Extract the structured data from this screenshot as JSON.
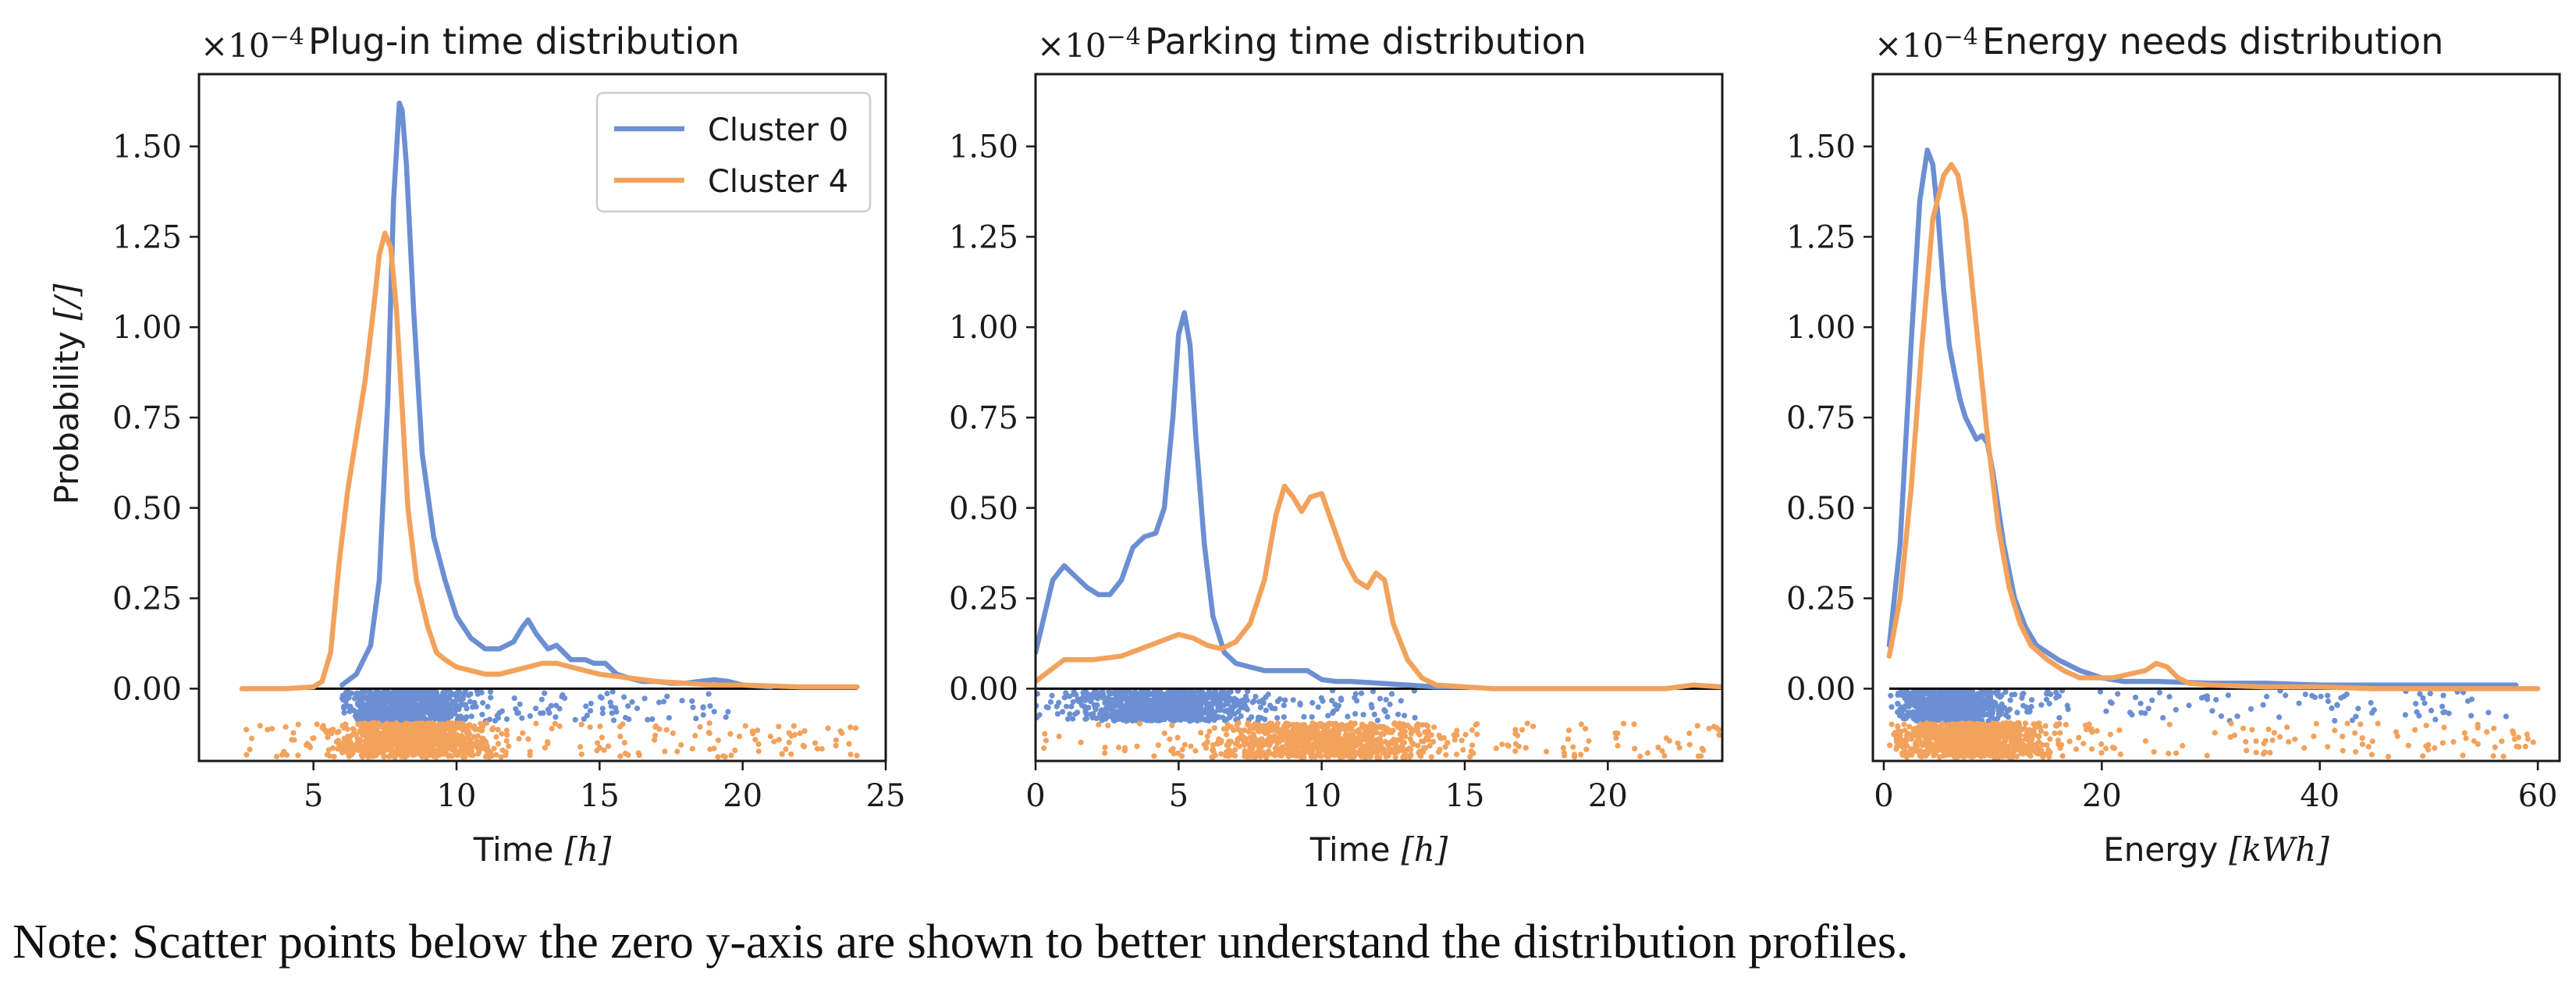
{
  "colors": {
    "cluster0": "#6b8fd2",
    "cluster4": "#f2a25c",
    "axis": "#1a1a1a",
    "zero_line": "#000000"
  },
  "legend": {
    "position": "top-right",
    "entries": [
      "Cluster 0",
      "Cluster 4"
    ]
  },
  "note": "Note: Scatter points below the zero y-axis are shown to better understand the distribution profiles.",
  "chart_data": [
    {
      "type": "line",
      "title": "Plug-in time distribution",
      "scale_label": "×10",
      "scale_exp": "−4",
      "xlabel": "Time",
      "xunit": "[h]",
      "ylabel": "Probability",
      "yunit": "[/]",
      "xlim": [
        1.0,
        25.0
      ],
      "ylim": [
        -0.2,
        1.7
      ],
      "xticks": [
        5,
        10,
        15,
        20,
        25
      ],
      "xtick_labels": [
        "5",
        "10",
        "15",
        "20",
        "25"
      ],
      "yticks": [
        0.0,
        0.25,
        0.5,
        0.75,
        1.0,
        1.25,
        1.5
      ],
      "ytick_labels": [
        "0.00",
        "0.25",
        "0.50",
        "0.75",
        "1.00",
        "1.25",
        "1.50"
      ],
      "show_legend": true,
      "baseline": {
        "x": [
          2.5,
          24.0
        ],
        "y": 0
      },
      "scatter": [
        {
          "name": "Cluster 0",
          "x_range": [
            6.0,
            19.5
          ],
          "peak": 8.2,
          "spread": 2.8,
          "y_range": [
            -0.09,
            -0.005
          ],
          "count": 900
        },
        {
          "name": "Cluster 4",
          "x_range": [
            2.5,
            24.0
          ],
          "peak": 8.5,
          "spread": 3.5,
          "y_range": [
            -0.19,
            -0.095
          ],
          "count": 1000
        }
      ],
      "series": [
        {
          "name": "Cluster 0",
          "x": [
            6.0,
            6.5,
            7.0,
            7.3,
            7.6,
            7.8,
            8.0,
            8.1,
            8.25,
            8.5,
            8.8,
            9.2,
            9.6,
            10.0,
            10.5,
            11.0,
            11.5,
            12.0,
            12.3,
            12.5,
            12.8,
            13.2,
            13.5,
            14.0,
            14.5,
            14.8,
            15.2,
            15.6,
            16.0,
            16.5,
            17.0,
            17.5,
            18.0,
            18.5,
            19.0,
            19.5,
            20.0,
            21.0
          ],
          "y": [
            0.01,
            0.04,
            0.12,
            0.3,
            0.8,
            1.35,
            1.62,
            1.6,
            1.45,
            1.05,
            0.65,
            0.42,
            0.3,
            0.2,
            0.14,
            0.11,
            0.11,
            0.13,
            0.17,
            0.19,
            0.15,
            0.11,
            0.12,
            0.08,
            0.08,
            0.07,
            0.07,
            0.04,
            0.03,
            0.02,
            0.02,
            0.015,
            0.015,
            0.02,
            0.025,
            0.02,
            0.01,
            0.005
          ]
        },
        {
          "name": "Cluster 4",
          "x": [
            2.5,
            4.0,
            5.0,
            5.3,
            5.6,
            5.9,
            6.2,
            6.5,
            6.8,
            7.1,
            7.3,
            7.5,
            7.7,
            7.9,
            8.1,
            8.3,
            8.6,
            9.0,
            9.3,
            9.6,
            10.0,
            10.5,
            11.0,
            11.5,
            12.0,
            12.5,
            13.0,
            13.5,
            14.0,
            15.0,
            16.0,
            17.0,
            18.0,
            19.0,
            20.0,
            22.0,
            24.0
          ],
          "y": [
            0.0,
            0.0,
            0.005,
            0.02,
            0.1,
            0.35,
            0.55,
            0.7,
            0.85,
            1.05,
            1.2,
            1.26,
            1.22,
            1.05,
            0.78,
            0.5,
            0.3,
            0.17,
            0.1,
            0.08,
            0.06,
            0.05,
            0.04,
            0.04,
            0.05,
            0.06,
            0.07,
            0.07,
            0.06,
            0.04,
            0.03,
            0.02,
            0.015,
            0.01,
            0.01,
            0.005,
            0.005
          ]
        }
      ]
    },
    {
      "type": "line",
      "title": "Parking time distribution",
      "scale_label": "×10",
      "scale_exp": "−4",
      "xlabel": "Time",
      "xunit": "[h]",
      "ylabel": "",
      "yunit": "",
      "xlim": [
        0.0,
        24.0
      ],
      "ylim": [
        -0.2,
        1.7
      ],
      "xticks": [
        0,
        5,
        10,
        15,
        20
      ],
      "xtick_labels": [
        "0",
        "5",
        "10",
        "15",
        "20"
      ],
      "yticks": [
        0.0,
        0.25,
        0.5,
        0.75,
        1.0,
        1.25,
        1.5
      ],
      "ytick_labels": [
        "0.00",
        "0.25",
        "0.50",
        "0.75",
        "1.00",
        "1.25",
        "1.50"
      ],
      "show_legend": false,
      "baseline": {
        "x": [
          0.0,
          24.0
        ],
        "y": 0
      },
      "scatter": [
        {
          "name": "Cluster 0",
          "x_range": [
            0.0,
            13.5
          ],
          "peak": 4.5,
          "spread": 3.6,
          "y_range": [
            -0.09,
            -0.005
          ],
          "count": 900
        },
        {
          "name": "Cluster 4",
          "x_range": [
            0.0,
            24.0
          ],
          "peak": 10.0,
          "spread": 5.0,
          "y_range": [
            -0.19,
            -0.095
          ],
          "count": 1000
        }
      ],
      "series": [
        {
          "name": "Cluster 0",
          "x": [
            0.0,
            0.3,
            0.6,
            1.0,
            1.4,
            1.8,
            2.2,
            2.6,
            3.0,
            3.4,
            3.8,
            4.2,
            4.5,
            4.8,
            5.0,
            5.2,
            5.4,
            5.6,
            5.9,
            6.2,
            6.6,
            7.0,
            7.5,
            8.0,
            8.5,
            9.0,
            9.5,
            10.0,
            10.5,
            11.0,
            12.0,
            13.0,
            14.0,
            15.0
          ],
          "y": [
            0.1,
            0.2,
            0.3,
            0.34,
            0.31,
            0.28,
            0.26,
            0.26,
            0.3,
            0.39,
            0.42,
            0.43,
            0.5,
            0.75,
            0.98,
            1.04,
            0.95,
            0.7,
            0.4,
            0.2,
            0.1,
            0.07,
            0.06,
            0.05,
            0.05,
            0.05,
            0.05,
            0.025,
            0.02,
            0.02,
            0.015,
            0.01,
            0.005,
            0.005
          ]
        },
        {
          "name": "Cluster 4",
          "x": [
            0.0,
            0.5,
            1.0,
            1.5,
            2.0,
            3.0,
            4.0,
            5.0,
            5.5,
            6.0,
            6.5,
            7.0,
            7.5,
            8.0,
            8.4,
            8.7,
            9.0,
            9.3,
            9.6,
            10.0,
            10.4,
            10.8,
            11.2,
            11.6,
            11.9,
            12.2,
            12.5,
            13.0,
            13.5,
            14.0,
            15.0,
            16.0,
            18.0,
            20.0,
            22.0,
            23.0,
            24.0
          ],
          "y": [
            0.02,
            0.05,
            0.08,
            0.08,
            0.08,
            0.09,
            0.12,
            0.15,
            0.14,
            0.12,
            0.11,
            0.13,
            0.18,
            0.3,
            0.48,
            0.56,
            0.53,
            0.49,
            0.53,
            0.54,
            0.45,
            0.36,
            0.3,
            0.28,
            0.32,
            0.3,
            0.18,
            0.08,
            0.03,
            0.01,
            0.005,
            0.0,
            0.0,
            0.0,
            0.0,
            0.01,
            0.005
          ]
        }
      ]
    },
    {
      "type": "line",
      "title": "Energy needs distribution",
      "scale_label": "×10",
      "scale_exp": "−4",
      "xlabel": "Energy",
      "xunit": "[kWh]",
      "ylabel": "",
      "yunit": "",
      "xlim": [
        -1.0,
        62.0
      ],
      "ylim": [
        -0.2,
        1.7
      ],
      "xticks": [
        0,
        20,
        40,
        60
      ],
      "xtick_labels": [
        "0",
        "20",
        "40",
        "60"
      ],
      "yticks": [
        0.0,
        0.25,
        0.5,
        0.75,
        1.0,
        1.25,
        1.5
      ],
      "ytick_labels": [
        "0.00",
        "0.25",
        "0.50",
        "0.75",
        "1.00",
        "1.25",
        "1.50"
      ],
      "show_legend": false,
      "baseline": {
        "x": [
          0.5,
          60.0
        ],
        "y": 0
      },
      "scatter": [
        {
          "name": "Cluster 0",
          "x_range": [
            0.5,
            58.0
          ],
          "peak": 6.0,
          "spread": 6.0,
          "y_range": [
            -0.09,
            -0.005
          ],
          "count": 900
        },
        {
          "name": "Cluster 4",
          "x_range": [
            0.5,
            60.0
          ],
          "peak": 8.0,
          "spread": 9.0,
          "y_range": [
            -0.19,
            -0.095
          ],
          "count": 1000
        }
      ],
      "series": [
        {
          "name": "Cluster 0",
          "x": [
            0.5,
            1.5,
            2.5,
            3.3,
            4.0,
            4.5,
            5.0,
            5.5,
            6.0,
            6.5,
            7.0,
            7.5,
            8.0,
            8.5,
            9.0,
            9.5,
            10.0,
            11.0,
            12.0,
            13.0,
            14.0,
            15.0,
            16.0,
            18.0,
            20.0,
            22.0,
            25.0,
            30.0,
            35.0,
            40.0,
            45.0,
            50.0,
            55.0,
            58.0
          ],
          "y": [
            0.12,
            0.4,
            0.95,
            1.35,
            1.49,
            1.45,
            1.3,
            1.1,
            0.95,
            0.87,
            0.8,
            0.75,
            0.72,
            0.69,
            0.7,
            0.68,
            0.6,
            0.4,
            0.25,
            0.17,
            0.12,
            0.1,
            0.08,
            0.05,
            0.03,
            0.02,
            0.02,
            0.015,
            0.015,
            0.01,
            0.01,
            0.01,
            0.01,
            0.01
          ]
        },
        {
          "name": "Cluster 4",
          "x": [
            0.5,
            1.5,
            2.5,
            3.5,
            4.5,
            5.5,
            6.2,
            6.8,
            7.5,
            8.5,
            9.5,
            10.5,
            11.5,
            12.5,
            13.5,
            15.0,
            16.5,
            18.0,
            19.5,
            21.0,
            22.5,
            24.0,
            25.0,
            26.0,
            27.0,
            28.0,
            30.0,
            35.0,
            40.0,
            45.0,
            50.0,
            55.0,
            60.0
          ],
          "y": [
            0.09,
            0.25,
            0.55,
            0.95,
            1.3,
            1.42,
            1.45,
            1.42,
            1.3,
            1.0,
            0.7,
            0.45,
            0.28,
            0.18,
            0.12,
            0.08,
            0.05,
            0.03,
            0.03,
            0.03,
            0.04,
            0.05,
            0.07,
            0.06,
            0.03,
            0.015,
            0.01,
            0.005,
            0.005,
            0.0,
            0.0,
            0.0,
            0.0
          ]
        }
      ]
    }
  ]
}
